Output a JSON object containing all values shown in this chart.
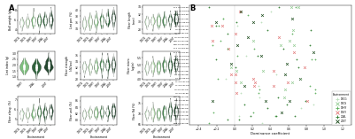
{
  "panel_A_label": "A",
  "panel_B_label": "B",
  "environments": [
    "19CG",
    "19CS",
    "19HY",
    "19SY",
    "20AL",
    "20ST"
  ],
  "lint_environments": [
    "19HY",
    "20AL",
    "20ST"
  ],
  "violin_colors_full": [
    "#cde8cc",
    "#b0d9a8",
    "#72b872",
    "#3a7d44",
    "#1a5228",
    "#0c3318"
  ],
  "violin_colors_lint": [
    "#72b872",
    "#1a5228",
    "#0c3318"
  ],
  "dot_plot_yticks": [
    "FL1 VS F3c-Pal",
    "FL1 VS F3i-Pal",
    "FL1 VS F5c-Pal",
    "SY VS F3c-Pal",
    "SY VS F3i-Pal",
    "LP VS F3c-Pal",
    "LP VS F3i-Pal",
    "LP VS F5c-Pal",
    "LP VS F3c-Pal",
    "BW VS F3c-Pal",
    "BW VS F5c-Pal",
    "FL1 VS F5c-Pal",
    "FL1 VS F3c-Pal",
    "FL1 VS F3i-Pal",
    "FL1 VS F5c-Pal",
    "FL1 VS F3c-Pal",
    "FL1 VS F3i-Pal",
    "SY VS F3c-Pal",
    "SY VS F5c-Pal",
    "SY VS F3i-Pal",
    "LY VS F3c-Pal",
    "LY VS F5c-Pal",
    "LP VS F3c-Pal",
    "LP VS F3i-Pal",
    "BW VS F3c-Pal",
    "BW VS F3i-Pal",
    "LP VS F3c-Pal",
    "LP VS F5c-Pal",
    "LP VS F3i-Pal",
    "BW VS F3c-Pal",
    "BW VS F3i-Pal",
    "BW VS F5c-Pal"
  ],
  "env_colors": {
    "19CG": "#cde8cc",
    "19CS": "#a5d6a0",
    "19HY": "#66bb6a",
    "19SY": "#d84040",
    "20AL": "#1b5e20",
    "20ST": "#0a3d0a"
  },
  "env_markers": {
    "19CG": "+",
    "19CS": "+",
    "19HY": "+",
    "19SY": "+",
    "20AL": "+",
    "20ST": "+"
  },
  "x_axis_label": "Dominance coefficient",
  "xlim": [
    -0.5,
    1.2
  ],
  "background_color": "#ffffff"
}
